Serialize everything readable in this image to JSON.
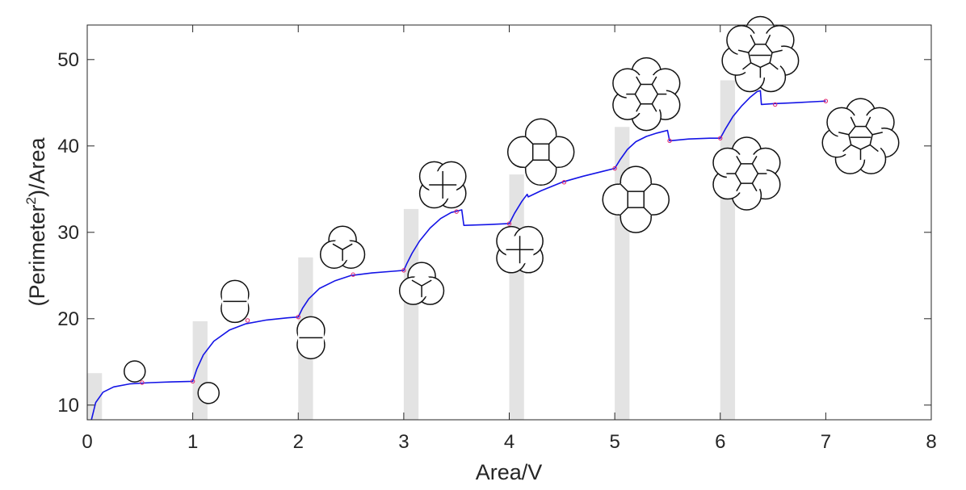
{
  "chart_data": {
    "type": "line",
    "title": "",
    "xlabel": "Area/V",
    "ylabel_main": "(Perimeter",
    "ylabel_sup": "2",
    "ylabel_tail": ")/Area",
    "xlim": [
      0,
      8
    ],
    "ylim": [
      8.3,
      54
    ],
    "xticks": [
      0,
      1,
      2,
      3,
      4,
      5,
      6,
      7,
      8
    ],
    "yticks": [
      10,
      20,
      30,
      40,
      50
    ],
    "grid": false,
    "legend": "none",
    "colors": {
      "curve": "#1414e6",
      "markers": "#e0206a",
      "bars": "#e3e3e3",
      "axes": "#262626"
    },
    "bars": {
      "width": 0.14,
      "items": [
        {
          "x": 0.07,
          "value": 13.7
        },
        {
          "x": 1.07,
          "value": 19.7
        },
        {
          "x": 2.07,
          "value": 27.1
        },
        {
          "x": 3.07,
          "value": 32.7
        },
        {
          "x": 4.07,
          "value": 36.7
        },
        {
          "x": 5.07,
          "value": 42.2
        },
        {
          "x": 6.07,
          "value": 47.6
        }
      ]
    },
    "curve": {
      "name": "",
      "x": [
        0.04,
        0.08,
        0.15,
        0.25,
        0.4,
        0.6,
        0.8,
        1.0,
        1.04,
        1.1,
        1.2,
        1.35,
        1.5,
        1.7,
        1.9,
        2.0,
        2.04,
        2.1,
        2.2,
        2.35,
        2.5,
        2.7,
        2.9,
        3.0,
        3.03,
        3.08,
        3.15,
        3.25,
        3.35,
        3.45,
        3.55,
        3.57,
        3.8,
        3.98,
        4.0,
        4.05,
        4.12,
        4.17,
        4.18,
        4.3,
        4.5,
        4.7,
        4.9,
        5.0,
        5.05,
        5.12,
        5.2,
        5.3,
        5.4,
        5.5,
        5.52,
        5.7,
        5.9,
        6.0,
        6.05,
        6.12,
        6.2,
        6.28,
        6.35,
        6.38,
        6.39,
        6.5,
        6.7,
        7.0
      ],
      "y": [
        8.3,
        10.3,
        11.5,
        12.1,
        12.45,
        12.6,
        12.68,
        12.75,
        14.2,
        15.8,
        17.4,
        18.7,
        19.4,
        19.85,
        20.1,
        20.2,
        21.2,
        22.3,
        23.5,
        24.4,
        25.0,
        25.3,
        25.5,
        25.6,
        26.4,
        27.6,
        29.0,
        30.5,
        31.6,
        32.3,
        32.6,
        30.8,
        30.9,
        31.0,
        31.0,
        32.2,
        33.6,
        34.4,
        34.1,
        34.8,
        35.8,
        36.5,
        37.1,
        37.4,
        38.4,
        39.6,
        40.5,
        41.1,
        41.5,
        41.8,
        40.6,
        40.8,
        40.9,
        40.9,
        42.0,
        43.4,
        44.6,
        45.6,
        46.3,
        46.4,
        44.8,
        44.9,
        45.0,
        45.2
      ]
    },
    "markers": {
      "x": [
        0.52,
        1.0,
        1.52,
        2.0,
        2.52,
        3.0,
        3.5,
        4.0,
        4.52,
        5.0,
        5.52,
        6.0,
        6.52,
        7.0
      ],
      "y": [
        12.6,
        12.75,
        19.8,
        20.2,
        25.1,
        25.6,
        32.4,
        31.0,
        35.8,
        37.4,
        40.6,
        40.9,
        44.8,
        45.2
      ]
    },
    "cluster_insets": [
      {
        "name": "inset-cells-1",
        "x": 0.45,
        "y": 13.9,
        "cells": 1
      },
      {
        "name": "inset-cells-1-grey",
        "x": 1.15,
        "y": 11.4,
        "cells": 1
      },
      {
        "name": "inset-cells-2-top",
        "x": 1.4,
        "y": 22.0,
        "cells": 2
      },
      {
        "name": "inset-cells-2-bottom",
        "x": 2.12,
        "y": 17.8,
        "cells": 2
      },
      {
        "name": "inset-cells-3-top",
        "x": 2.42,
        "y": 28.0,
        "cells": 3
      },
      {
        "name": "inset-cells-3-bottom",
        "x": 3.17,
        "y": 23.8,
        "cells": 3
      },
      {
        "name": "inset-cells-4-top",
        "x": 3.37,
        "y": 35.5,
        "cells": 4
      },
      {
        "name": "inset-cells-4-bottom",
        "x": 4.1,
        "y": 28.0,
        "cells": 4
      },
      {
        "name": "inset-cells-5-top",
        "x": 4.3,
        "y": 39.3,
        "cells": 5
      },
      {
        "name": "inset-cells-5-bottom",
        "x": 5.2,
        "y": 33.8,
        "cells": 5
      },
      {
        "name": "inset-cells-7-top",
        "x": 5.3,
        "y": 46.0,
        "cells": 7
      },
      {
        "name": "inset-cells-7-bottom",
        "x": 6.25,
        "y": 36.8,
        "cells": 7
      },
      {
        "name": "inset-cells-8-top",
        "x": 6.38,
        "y": 50.5,
        "cells": 8
      },
      {
        "name": "inset-cells-8-bottom",
        "x": 7.33,
        "y": 41.0,
        "cells": 8
      }
    ]
  }
}
